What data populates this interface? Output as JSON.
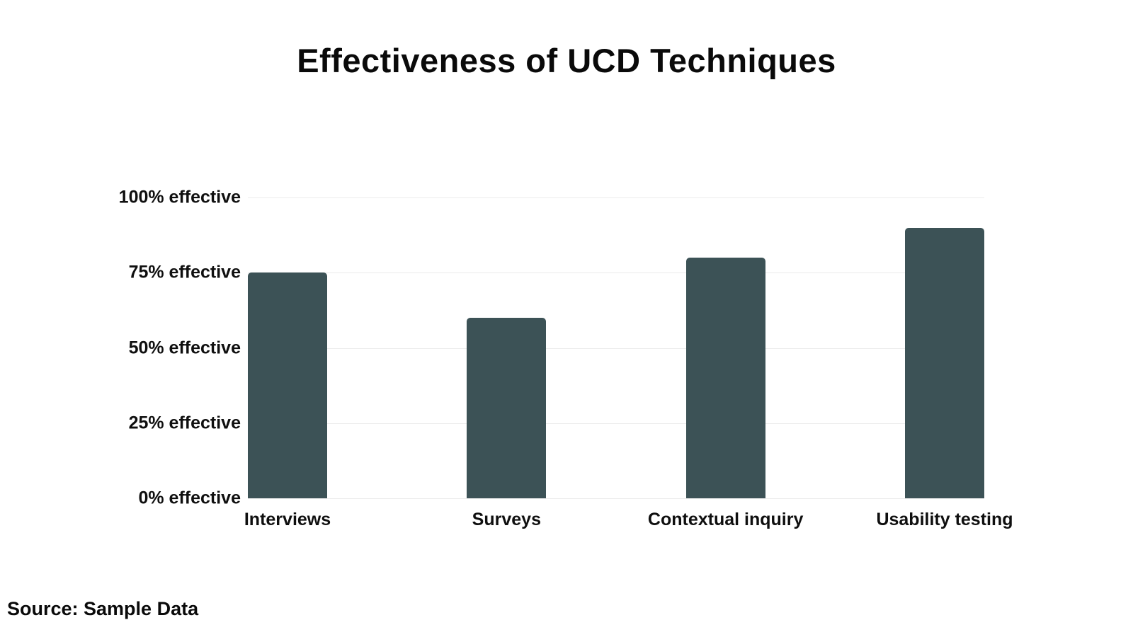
{
  "title": "Effectiveness of UCD Techniques",
  "source": "Source: Sample Data",
  "colors": {
    "bar": "#3c5256",
    "grid": "#ececec",
    "text": "#0f0f0f",
    "background": "#ffffff"
  },
  "chart_data": {
    "type": "bar",
    "title": "Effectiveness of UCD Techniques",
    "categories": [
      "Interviews",
      "Surveys",
      "Contextual inquiry",
      "Usability testing"
    ],
    "values": [
      75,
      60,
      80,
      90
    ],
    "xlabel": "",
    "ylabel": "",
    "ylim": [
      0,
      100
    ],
    "grid": true,
    "legend": false,
    "yticks": [
      {
        "value": 100,
        "label": "100% effective"
      },
      {
        "value": 75,
        "label": "75% effective"
      },
      {
        "value": 50,
        "label": "50% effective"
      },
      {
        "value": 25,
        "label": "25% effective"
      },
      {
        "value": 0,
        "label": "0% effective"
      }
    ],
    "annotations": [
      "Source: Sample Data"
    ]
  }
}
